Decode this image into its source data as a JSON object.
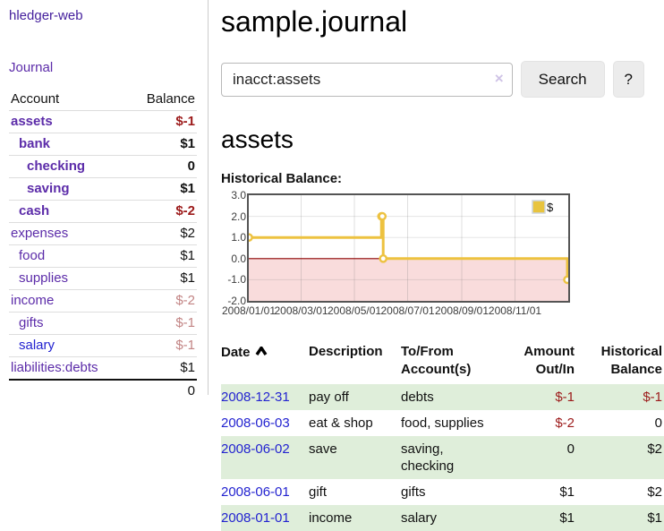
{
  "app": {
    "title": "hledger-web"
  },
  "sidebar": {
    "journal_link": "Journal",
    "accounts": {
      "account_header": "Account",
      "balance_header": "Balance",
      "rows": [
        {
          "name": "assets",
          "balance": "$-1",
          "depth": 1,
          "matched": true,
          "name_color": "purple",
          "balance_tone": "neg-strong"
        },
        {
          "name": "bank",
          "balance": "$1",
          "depth": 2,
          "matched": true,
          "name_color": "purple",
          "balance_tone": "pos"
        },
        {
          "name": "checking",
          "balance": "0",
          "depth": 3,
          "matched": true,
          "name_color": "purple",
          "balance_tone": "pos"
        },
        {
          "name": "saving",
          "balance": "$1",
          "depth": 3,
          "matched": true,
          "name_color": "purple",
          "balance_tone": "pos"
        },
        {
          "name": "cash",
          "balance": "$-2",
          "depth": 2,
          "matched": true,
          "name_color": "purple",
          "balance_tone": "neg-strong"
        },
        {
          "name": "expenses",
          "balance": "$2",
          "depth": 1,
          "matched": false,
          "name_color": "purple",
          "balance_tone": "pos"
        },
        {
          "name": "food",
          "balance": "$1",
          "depth": 2,
          "matched": false,
          "name_color": "purple",
          "balance_tone": "pos"
        },
        {
          "name": "supplies",
          "balance": "$1",
          "depth": 2,
          "matched": false,
          "name_color": "purple",
          "balance_tone": "pos"
        },
        {
          "name": "income",
          "balance": "$-2",
          "depth": 1,
          "matched": false,
          "name_color": "purple",
          "balance_tone": "neg-soft"
        },
        {
          "name": "gifts",
          "balance": "$-1",
          "depth": 2,
          "matched": false,
          "name_color": "purple",
          "balance_tone": "neg-soft"
        },
        {
          "name": "salary",
          "balance": "$-1",
          "depth": 2,
          "matched": false,
          "name_color": "blue",
          "balance_tone": "neg-soft"
        },
        {
          "name": "liabilities:debts",
          "balance": "$1",
          "depth": 1,
          "matched": false,
          "name_color": "purple",
          "balance_tone": "pos"
        }
      ],
      "total": "0"
    }
  },
  "page": {
    "title": "sample.journal"
  },
  "search": {
    "value": "inacct:assets",
    "clear_label": "×",
    "button_label": "Search",
    "help_label": "?"
  },
  "account_page": {
    "heading": "assets",
    "section_label": "Historical Balance:"
  },
  "chart_data": {
    "type": "line",
    "step": true,
    "title": "Historical Balance",
    "series": [
      {
        "name": "$",
        "color": "#edc240",
        "points": [
          {
            "date": "2008-01-01",
            "value": 1
          },
          {
            "date": "2008-06-01",
            "value": 2
          },
          {
            "date": "2008-06-02",
            "value": 2
          },
          {
            "date": "2008-06-03",
            "value": 0
          },
          {
            "date": "2008-12-31",
            "value": -1
          }
        ]
      }
    ],
    "xrange": [
      "2008-01-01",
      "2009-01-01"
    ],
    "ylim": [
      -2,
      3
    ],
    "yticks": [
      "3.0",
      "2.0",
      "1.0",
      "0.0",
      "-1.0",
      "-2.0"
    ],
    "ytick_values": [
      3,
      2,
      1,
      0,
      -1,
      -2
    ],
    "xticks": [
      "2008/01/01",
      "2008/03/01",
      "2008/05/01",
      "2008/07/01",
      "2008/09/01",
      "2008/11/01"
    ],
    "xtick_dates": [
      "2008-01-01",
      "2008-03-01",
      "2008-05-01",
      "2008-07-01",
      "2008-09-01",
      "2008-11-01"
    ],
    "grid": true,
    "negative_fill": "#f9dcdc",
    "zero_line_color": "#8b0000",
    "legend": {
      "label": "$",
      "position": "top-right"
    }
  },
  "register": {
    "headers": {
      "date": "Date",
      "description": "Description",
      "accounts": "To/From Account(s)",
      "amount": "Amount Out/In",
      "balance": "Historical Balance"
    },
    "sort_icon": "caret-up",
    "rows": [
      {
        "date": "2008-12-31",
        "description": "pay off",
        "accounts": "debts",
        "amount": "$-1",
        "amount_tone": "neg-strong",
        "balance": "$-1",
        "balance_tone": "neg-strong",
        "stripe": true
      },
      {
        "date": "2008-06-03",
        "description": "eat & shop",
        "accounts": "food, supplies",
        "amount": "$-2",
        "amount_tone": "neg-strong",
        "balance": "0",
        "balance_tone": "pos",
        "stripe": false
      },
      {
        "date": "2008-06-02",
        "description": "save",
        "accounts": "saving, checking",
        "amount": "0",
        "amount_tone": "pos",
        "balance": "$2",
        "balance_tone": "pos",
        "stripe": true
      },
      {
        "date": "2008-06-01",
        "description": "gift",
        "accounts": "gifts",
        "amount": "$1",
        "amount_tone": "pos",
        "balance": "$2",
        "balance_tone": "pos",
        "stripe": false
      },
      {
        "date": "2008-01-01",
        "description": "income",
        "accounts": "salary",
        "amount": "$1",
        "amount_tone": "pos",
        "balance": "$1",
        "balance_tone": "pos",
        "stripe": true
      }
    ]
  }
}
